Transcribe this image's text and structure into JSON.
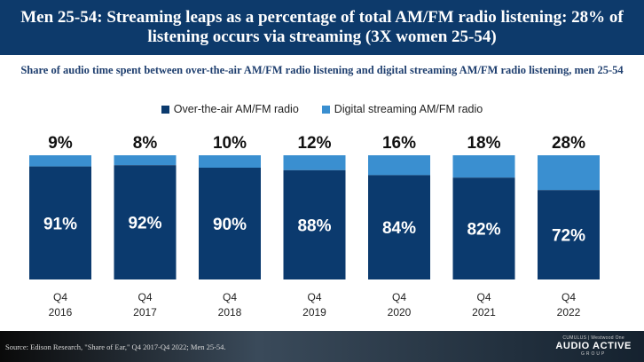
{
  "header": {
    "title": "Men 25-54: Streaming leaps as a percentage of total AM/FM radio listening: 28% of listening occurs via streaming (3X women 25-54)"
  },
  "chart_data": {
    "type": "bar",
    "stacked": true,
    "title": "Share of audio time spent between over-the-air AM/FM radio listening and digital streaming AM/FM radio listening, men 25-54",
    "categories": [
      [
        "Q4",
        "2016"
      ],
      [
        "Q4",
        "2017"
      ],
      [
        "Q4",
        "2018"
      ],
      [
        "Q4",
        "2019"
      ],
      [
        "Q4",
        "2020"
      ],
      [
        "Q4",
        "2021"
      ],
      [
        "Q4",
        "2022"
      ]
    ],
    "series": [
      {
        "name": "Over-the-air AM/FM radio",
        "color": "#0b3a6e",
        "values": [
          91,
          92,
          90,
          88,
          84,
          82,
          72
        ],
        "labels": [
          "91%",
          "92%",
          "90%",
          "88%",
          "84%",
          "82%",
          "72%"
        ]
      },
      {
        "name": "Digital streaming AM/FM radio",
        "color": "#3a8fd0",
        "values": [
          9,
          8,
          10,
          12,
          16,
          18,
          28
        ],
        "labels": [
          "9%",
          "8%",
          "10%",
          "12%",
          "16%",
          "18%",
          "28%"
        ]
      }
    ],
    "ylim": [
      0,
      100
    ],
    "legend_position": "top",
    "grid": false
  },
  "footer": {
    "source": "Source: Edison Research, \"Share of Ear,\" Q4 2017-Q4 2022; Men 25-54.",
    "logo_top": "CUMULUS | Westwood One",
    "logo_main": "AUDIO ACTIVE",
    "logo_sub": "GROUP"
  }
}
